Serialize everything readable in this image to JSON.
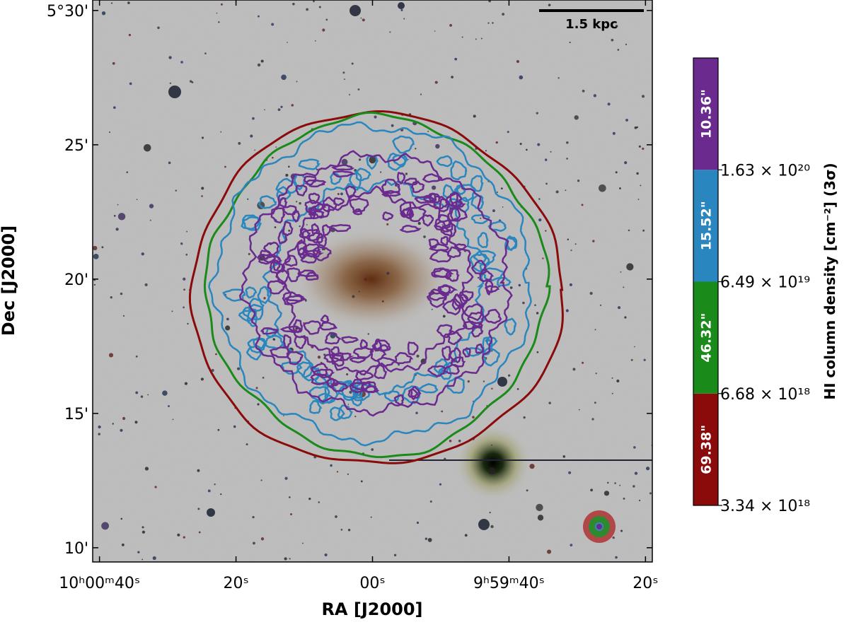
{
  "chart_data": {
    "type": "sky-image",
    "xlabel": "RA [J2000]",
    "ylabel": "Dec [J2000]",
    "xlim": [
      101,
      19
    ],
    "xticks": [
      {
        "value": 100,
        "label": "10ʰ00ᵐ40ˢ"
      },
      {
        "value": 80,
        "label": "20ˢ"
      },
      {
        "value": 60,
        "label": "00ˢ"
      },
      {
        "value": 40,
        "label": "9ʰ59ᵐ40ˢ"
      },
      {
        "value": 20,
        "label": "20ˢ"
      }
    ],
    "ylim": [
      9.47,
      30.39
    ],
    "yticks": [
      {
        "value": 10,
        "label": "10'"
      },
      {
        "value": 15,
        "label": "15'"
      },
      {
        "value": 20,
        "label": "20'"
      },
      {
        "value": 25,
        "label": "25'"
      },
      {
        "value": 30,
        "label": "5°30'"
      }
    ],
    "scale_bar": "1.5 kpc",
    "colorbar": {
      "label": "HI column density [cm⁻²] (3σ)",
      "segments": [
        {
          "name": "69.38\"",
          "color": "#8b0a0a"
        },
        {
          "name": "46.32\"",
          "color": "#1a8a1a"
        },
        {
          "name": "15.52\"",
          "color": "#2a86be"
        },
        {
          "name": "10.36\"",
          "color": "#6a2a8e"
        }
      ],
      "ticks": [
        {
          "value": 3.34e+18,
          "label": "3.34 × 10¹⁸"
        },
        {
          "value": 6.68e+18,
          "label": "6.68 × 10¹⁸"
        },
        {
          "value": 6.49e+19,
          "label": "6.49 × 10¹⁹"
        },
        {
          "value": 1.63e+20,
          "label": "1.63 × 10²⁰"
        }
      ]
    }
  }
}
